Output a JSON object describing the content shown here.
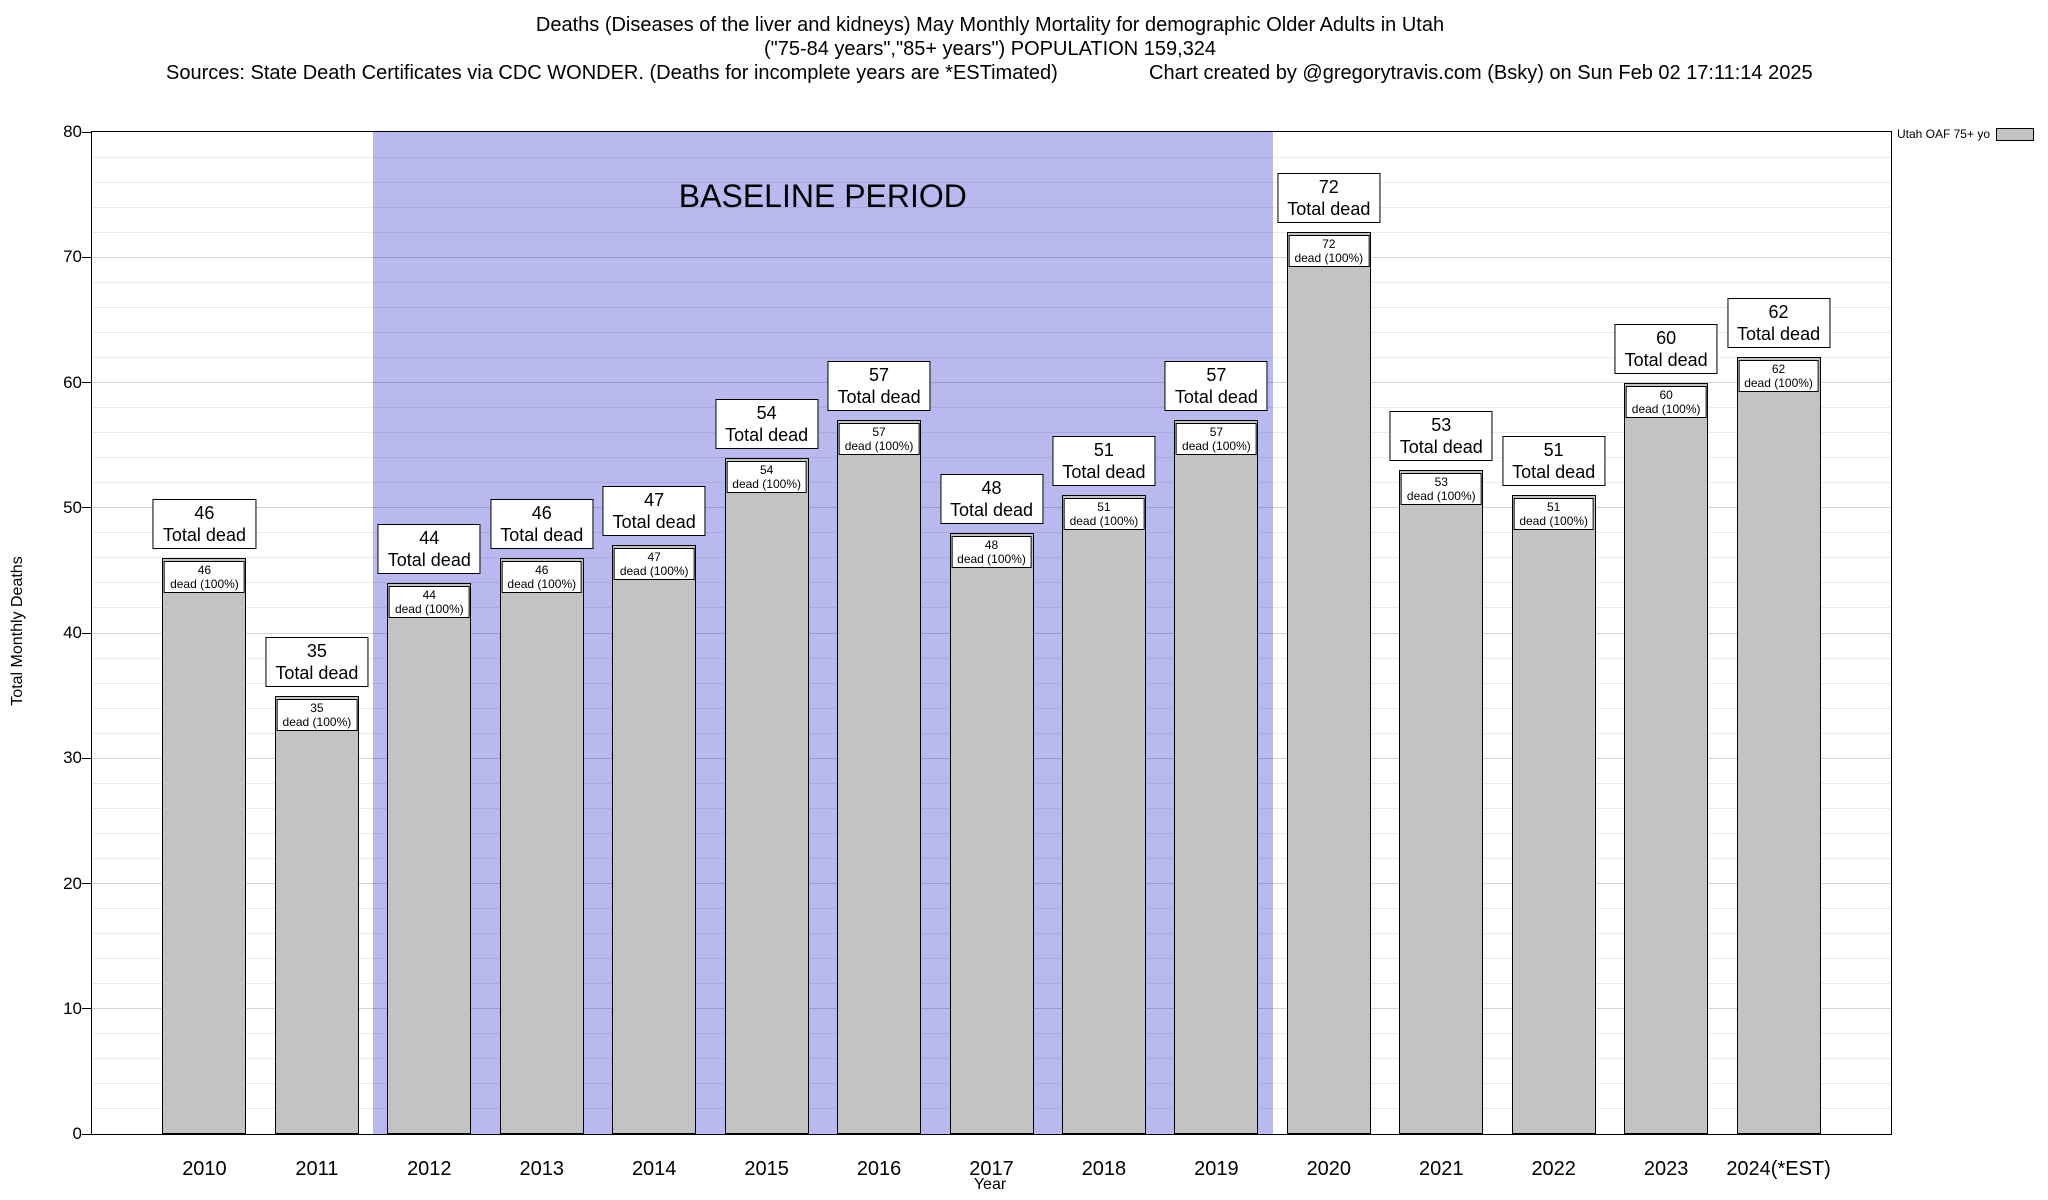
{
  "header": {
    "title_line1": "Deaths (Diseases of the liver and kidneys) May Monthly Mortality for demographic Older Adults in Utah",
    "title_line2": "(\"75-84 years\",\"85+ years\") POPULATION 159,324",
    "sources": "Sources: State Death Certificates via CDC WONDER. (Deaths for incomplete years are *ESTimated)",
    "credit": "Chart created by @gregorytravis.com (Bsky) on Sun Feb 02 17:11:14 2025"
  },
  "legend": {
    "label": "Utah OAF 75+ yo"
  },
  "chart_data": {
    "type": "bar",
    "title": "Deaths (Diseases of the liver and kidneys) May Monthly Mortality for demographic Older Adults in Utah",
    "subtitle": "(\"75-84 years\",\"85+ years\") POPULATION 159,324",
    "xlabel": "Year",
    "ylabel": "Total Monthly Deaths",
    "ylim": [
      0,
      80
    ],
    "y_major_ticks": [
      0,
      10,
      20,
      30,
      40,
      50,
      60,
      70,
      80
    ],
    "y_minor_step": 2,
    "grid": true,
    "legend_position": "top-right",
    "categories": [
      "2010",
      "2011",
      "2012",
      "2013",
      "2014",
      "2015",
      "2016",
      "2017",
      "2018",
      "2019",
      "2020",
      "2021",
      "2022",
      "2023",
      "2024(*EST)"
    ],
    "values": [
      46,
      35,
      44,
      46,
      47,
      54,
      57,
      48,
      51,
      57,
      72,
      53,
      51,
      60,
      62
    ],
    "bar_color": "#c3c3c3",
    "bar_border_color": "#000000",
    "annotations": {
      "total_label": "Total dead",
      "inner_label_suffix": "dead (100%)"
    },
    "baseline_band": {
      "label": "BASELINE PERIOD",
      "start_category": "2012",
      "end_category": "2019",
      "start_index": 2,
      "end_index": 9,
      "color": "#b9b9f0"
    }
  }
}
